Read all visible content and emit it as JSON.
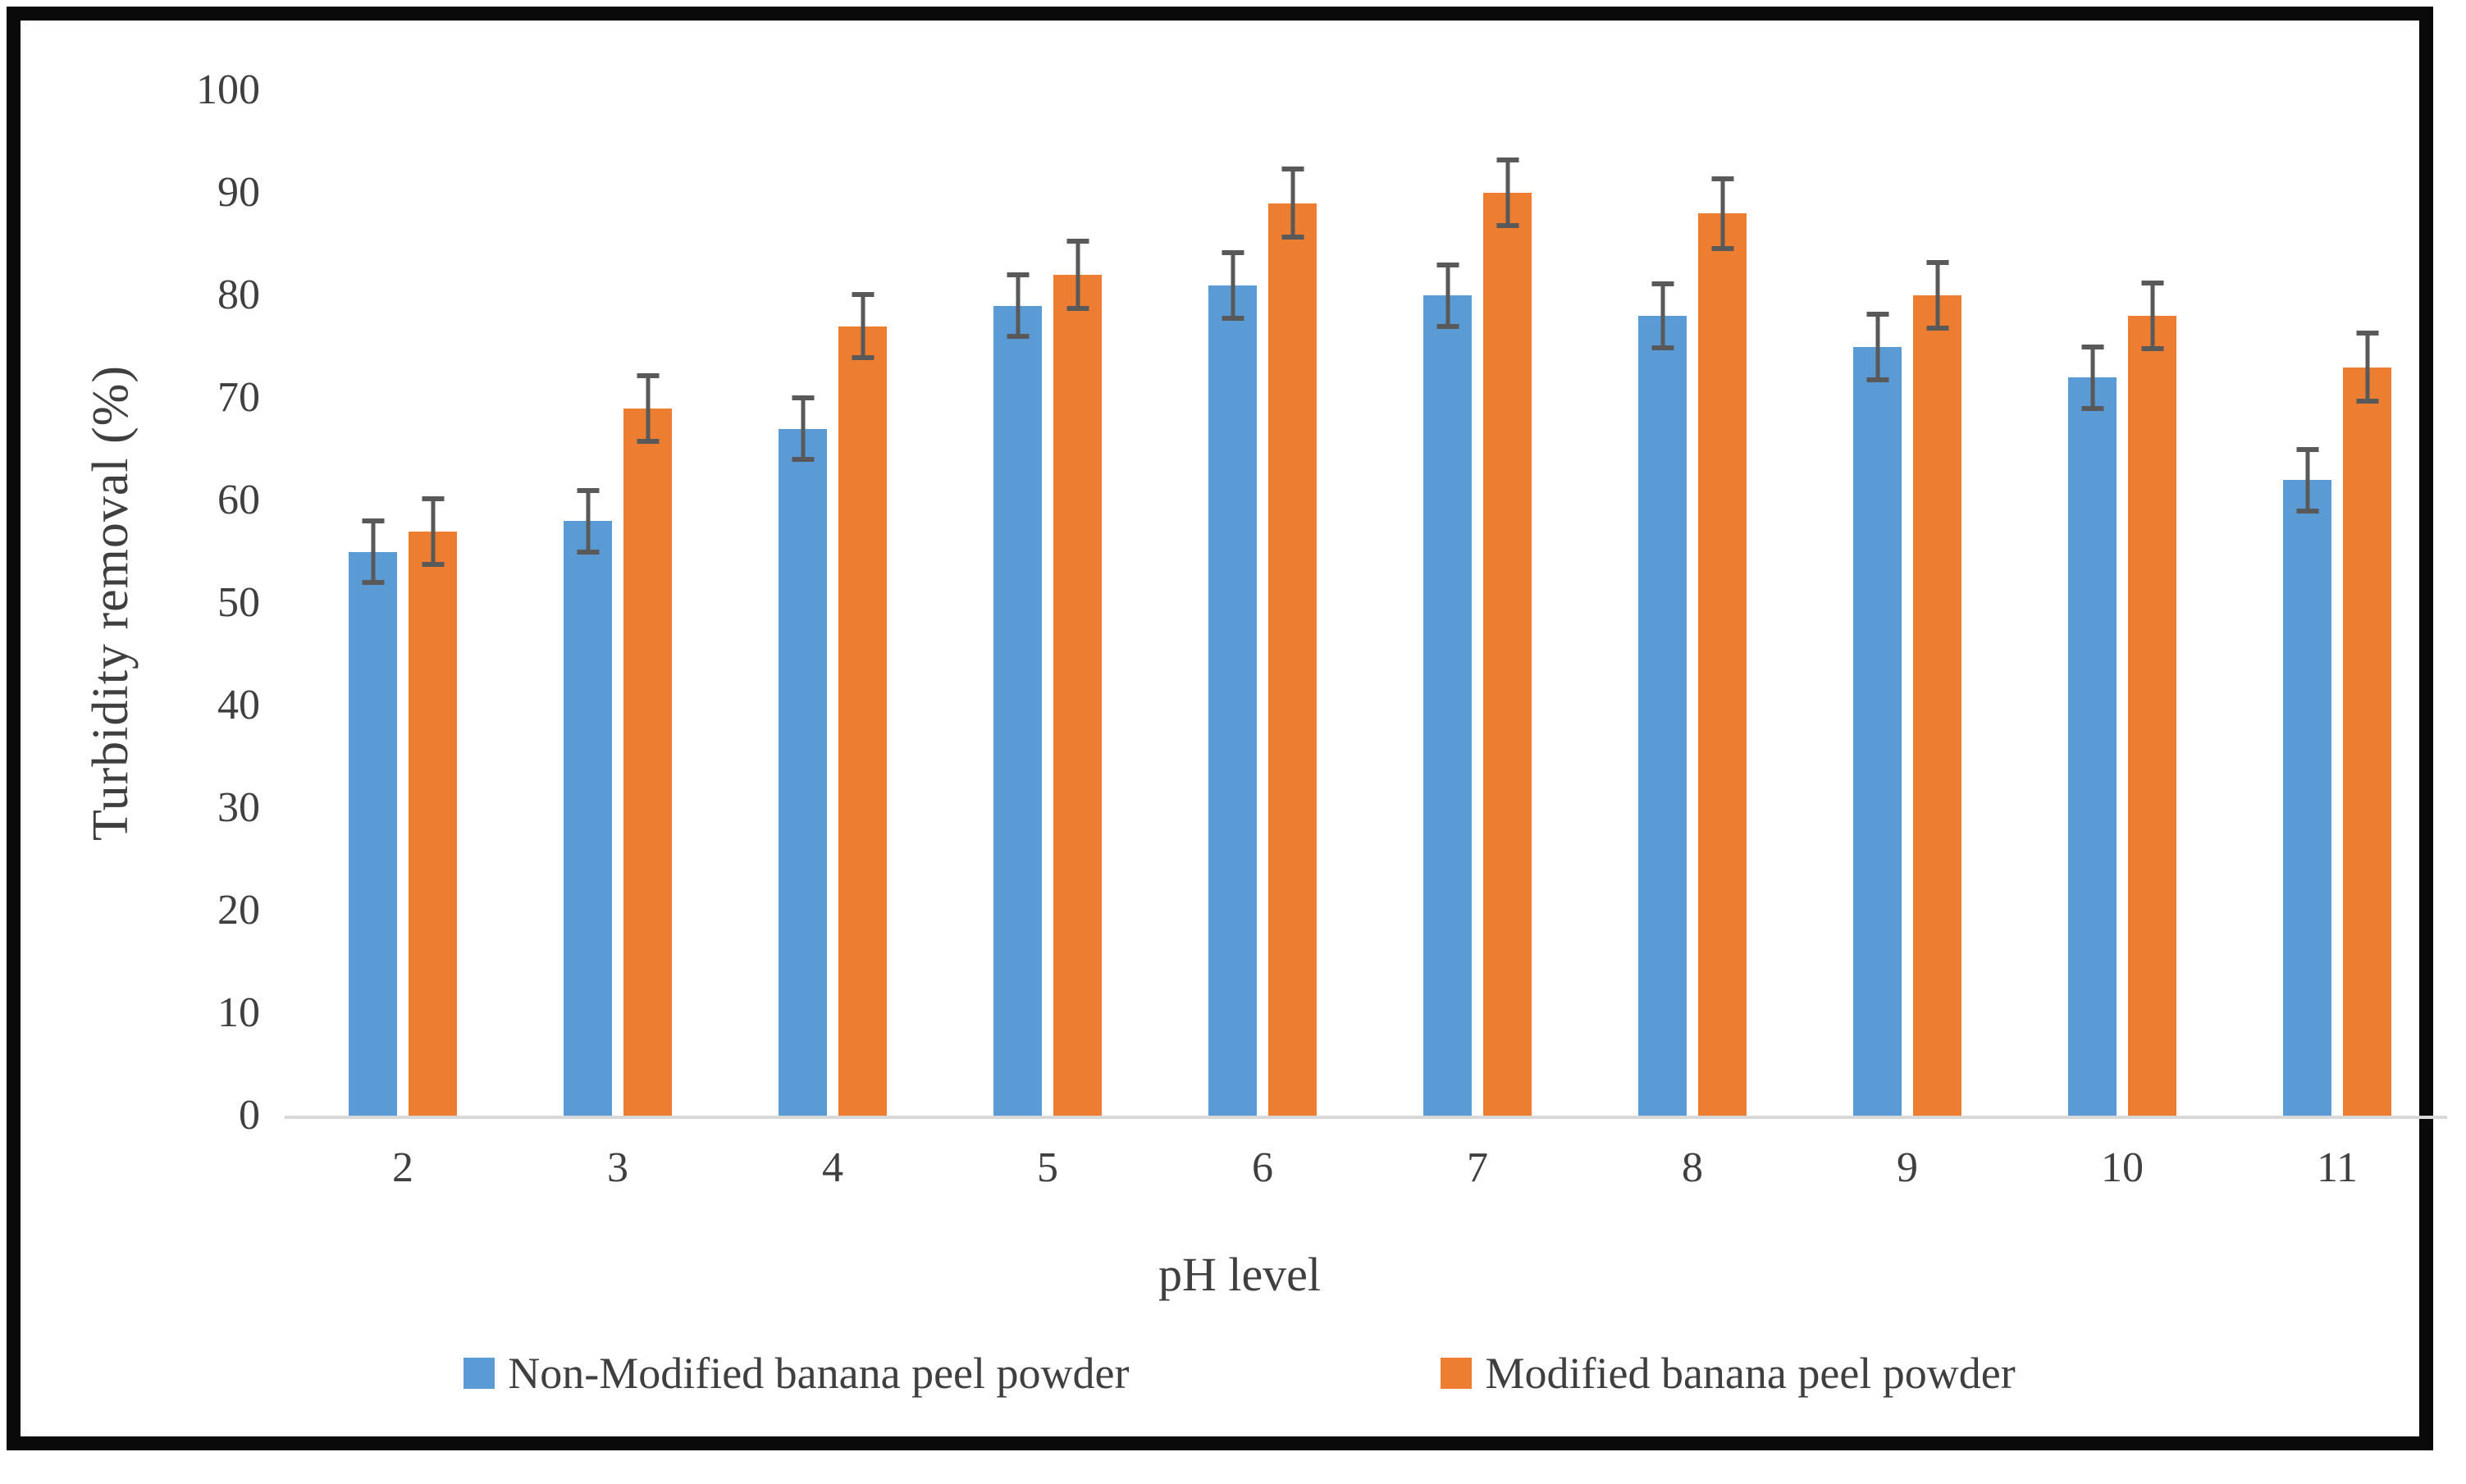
{
  "chart_data": {
    "type": "bar",
    "title": "",
    "xlabel": "pH level",
    "ylabel": "Turbidity removal (%)",
    "categories": [
      "2",
      "3",
      "4",
      "5",
      "6",
      "7",
      "8",
      "9",
      "10",
      "11"
    ],
    "series": [
      {
        "name": "Non-Modified banana peel powder",
        "color": "#5B9BD5",
        "values": [
          55,
          58,
          67,
          79,
          81,
          80,
          78,
          75,
          72,
          62
        ],
        "errors": [
          3,
          3,
          3,
          3,
          3.2,
          3,
          3.1,
          3.2,
          3,
          3
        ]
      },
      {
        "name": "Modified banana peel powder",
        "color": "#ED7D31",
        "values": [
          57,
          69,
          77,
          82,
          89,
          90,
          88,
          80,
          78,
          73
        ],
        "errors": [
          3.2,
          3.2,
          3.1,
          3.3,
          3.3,
          3.2,
          3.4,
          3.2,
          3.2,
          3.3
        ]
      }
    ],
    "ylim": [
      0,
      100
    ],
    "yticks": [
      0,
      10,
      20,
      30,
      40,
      50,
      60,
      70,
      80,
      90,
      100
    ],
    "grid": false,
    "legend_position": "bottom",
    "error_bars": true,
    "error_bar_color": "#595959",
    "axis_line_color": "#D9D9D9",
    "text_color": "#3F3F3F",
    "frame_border_color": "#0A0A0A"
  }
}
